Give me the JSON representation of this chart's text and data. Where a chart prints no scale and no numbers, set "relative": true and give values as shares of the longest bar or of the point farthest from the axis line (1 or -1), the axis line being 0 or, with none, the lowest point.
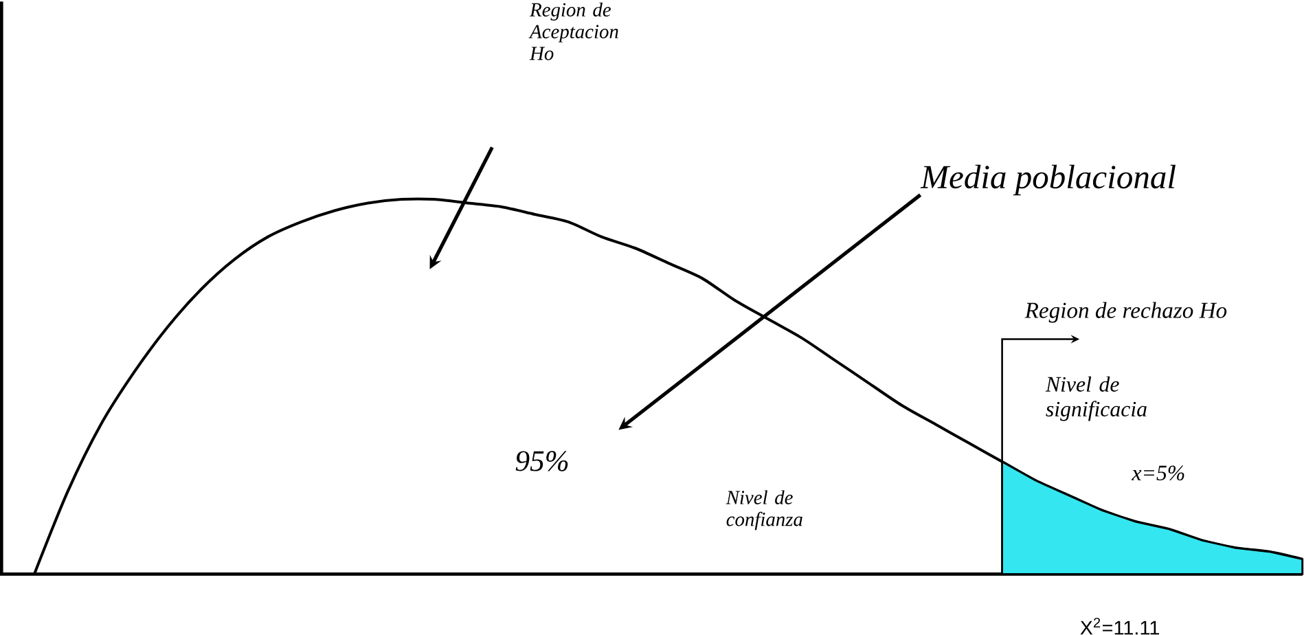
{
  "chart_data": {
    "type": "line",
    "relative": true,
    "categories": [
      null,
      null,
      null,
      null,
      null,
      null,
      null,
      null,
      null,
      null,
      null,
      null,
      null,
      null,
      null,
      null,
      null,
      null,
      null,
      null,
      null,
      null,
      null,
      null,
      null,
      null,
      null,
      null,
      null,
      null,
      null,
      null,
      null,
      null,
      null,
      null,
      null,
      null,
      null
    ],
    "series": [
      {
        "color": "#000000",
        "values": [
          0,
          0.22,
          0.4,
          0.54,
          0.66,
          0.76,
          0.84,
          0.9,
          0.94,
          0.97,
          0.99,
          1,
          1,
          0.99,
          0.98,
          0.96,
          0.94,
          0.9,
          0.87,
          0.83,
          0.79,
          0.73,
          0.68,
          0.63,
          0.57,
          0.51,
          0.45,
          0.4,
          0.35,
          0.3,
          0.25,
          0.21,
          0.17,
          0.14,
          0.12,
          0.09,
          0.07,
          0.06,
          0.04
        ]
      },
      {
        "type": "area",
        "color": "#33e6f0",
        "values": [
          null,
          null,
          null,
          null,
          null,
          null,
          null,
          null,
          null,
          null,
          null,
          null,
          null,
          null,
          null,
          null,
          null,
          null,
          null,
          null,
          null,
          null,
          null,
          null,
          null,
          null,
          null,
          null,
          null,
          0.3,
          0.25,
          0.21,
          0.17,
          0.14,
          0.12,
          0.09,
          0.07,
          0.06,
          0.04
        ]
      }
    ],
    "annotations": [
      "Region de Aceptacion Ho",
      "Media poblacional",
      "Region de rechazo Ho",
      "Nivel de significacia",
      "x=5%",
      "95%",
      "Nivel de confianza",
      "X$^{2}$=11.11"
    ]
  }
}
